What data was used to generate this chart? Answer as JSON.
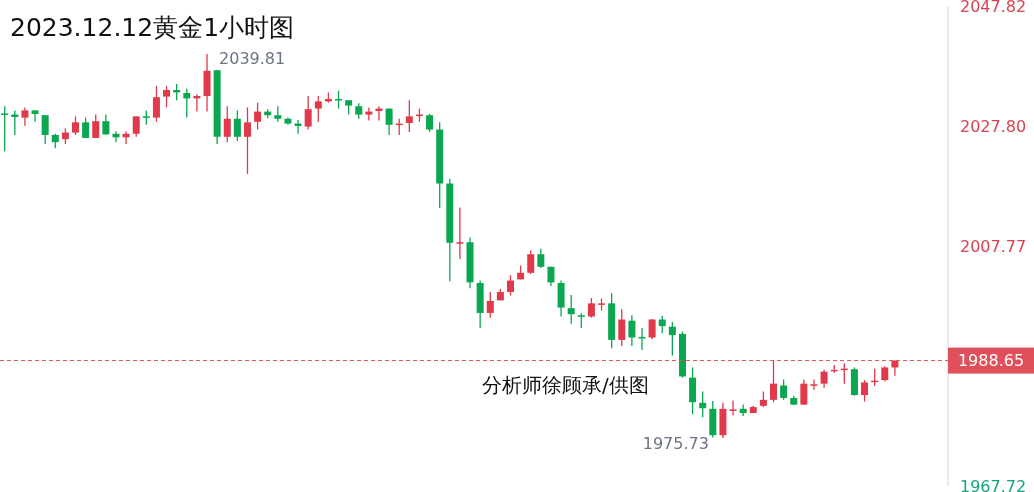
{
  "chart_data": {
    "type": "candlestick",
    "title": "2023.12.12黄金1小时图",
    "annotations": [
      "2039.81",
      "1975.73",
      "分析师徐顾承/供图"
    ],
    "categories": [
      null,
      null,
      null,
      null,
      null,
      null,
      null,
      null,
      null,
      null,
      null,
      null,
      null,
      null,
      null,
      null,
      null,
      null,
      null,
      null,
      null,
      null,
      null,
      null,
      null,
      null,
      null,
      null,
      null,
      null,
      null,
      null,
      null,
      null,
      null,
      null,
      null,
      null,
      null,
      null,
      null,
      null,
      null,
      null,
      null,
      null,
      null,
      null,
      null,
      null,
      null,
      null,
      null,
      null,
      null,
      null,
      null,
      null,
      null,
      null,
      null,
      null,
      null,
      null,
      null,
      null,
      null,
      null,
      null,
      null,
      null,
      null,
      null,
      null,
      null,
      null,
      null,
      null,
      null,
      null,
      null,
      null,
      null,
      null,
      null,
      null,
      null,
      null,
      null
    ],
    "ohlc": [
      [
        2029.9,
        2031.1,
        2023.6,
        2029.8
      ],
      [
        2029.7,
        2030.4,
        2026.3,
        2029.3
      ],
      [
        2029.2,
        2030.9,
        2027.8,
        2030.4
      ],
      [
        2030.4,
        2030.4,
        2028.5,
        2029.8
      ],
      [
        2029.6,
        2029.6,
        2024.8,
        2026.3
      ],
      [
        2026.3,
        2026.5,
        2024.1,
        2025.1
      ],
      [
        2025.6,
        2027.4,
        2024.8,
        2026.7
      ],
      [
        2026.7,
        2029.4,
        2026.3,
        2028.4
      ],
      [
        2028.4,
        2029.2,
        2025.8,
        2025.8
      ],
      [
        2025.8,
        2029.7,
        2025.8,
        2028.6
      ],
      [
        2028.6,
        2029.7,
        2026.3,
        2026.4
      ],
      [
        2026.5,
        2026.9,
        2025.1,
        2025.9
      ],
      [
        2025.9,
        2026.9,
        2024.8,
        2026.5
      ],
      [
        2026.5,
        2029.4,
        2026.0,
        2029.4
      ],
      [
        2029.4,
        2030.4,
        2028.0,
        2029.3
      ],
      [
        2029.2,
        2034.5,
        2028.5,
        2032.6
      ],
      [
        2032.7,
        2034.5,
        2030.9,
        2033.8
      ],
      [
        2033.8,
        2034.8,
        2032.1,
        2033.4
      ],
      [
        2033.3,
        2034.0,
        2029.2,
        2032.4
      ],
      [
        2032.4,
        2033.1,
        2030.2,
        2032.8
      ],
      [
        2032.8,
        2039.81,
        2030.2,
        2037.0
      ],
      [
        2037.1,
        2037.2,
        2024.8,
        2026.0
      ],
      [
        2026.0,
        2031.1,
        2025.1,
        2029.0
      ],
      [
        2029.0,
        2030.4,
        2025.3,
        2026.0
      ],
      [
        2026.0,
        2030.9,
        2019.8,
        2028.4
      ],
      [
        2028.5,
        2031.7,
        2027.2,
        2030.2
      ],
      [
        2030.2,
        2030.6,
        2029.1,
        2029.6
      ],
      [
        2029.6,
        2031.1,
        2028.5,
        2029.0
      ],
      [
        2029.0,
        2029.2,
        2028.0,
        2028.2
      ],
      [
        2028.2,
        2028.8,
        2026.5,
        2027.8
      ],
      [
        2027.7,
        2032.8,
        2027.2,
        2030.6
      ],
      [
        2030.7,
        2032.8,
        2028.5,
        2031.9
      ],
      [
        2031.9,
        2033.4,
        2031.7,
        2032.3
      ],
      [
        2032.3,
        2033.7,
        2030.7,
        2032.2
      ],
      [
        2032.1,
        2032.1,
        2029.7,
        2031.2
      ],
      [
        2031.1,
        2031.6,
        2029.0,
        2029.7
      ],
      [
        2029.7,
        2030.9,
        2028.7,
        2030.2
      ],
      [
        2030.3,
        2031.1,
        2028.7,
        2030.7
      ],
      [
        2030.7,
        2030.7,
        2026.3,
        2028.0
      ],
      [
        2028.1,
        2029.0,
        2026.3,
        2028.2
      ],
      [
        2028.3,
        2032.1,
        2026.8,
        2029.4
      ],
      [
        2029.6,
        2030.7,
        2028.5,
        2029.7
      ],
      [
        2029.6,
        2029.8,
        2026.8,
        2027.2
      ],
      [
        2027.2,
        2028.4,
        2014.1,
        2018.2
      ],
      [
        2018.2,
        2019.0,
        2001.9,
        2008.3
      ],
      [
        2008.3,
        2014.2,
        2005.6,
        2008.4
      ],
      [
        2008.4,
        2009.2,
        2000.7,
        2001.7
      ],
      [
        2001.6,
        2002.0,
        1994.1,
        1996.6
      ],
      [
        1996.6,
        2000.1,
        1995.8,
        1998.6
      ],
      [
        1998.7,
        2000.6,
        1998.7,
        2000.1
      ],
      [
        2000.1,
        2002.9,
        1999.5,
        2002.0
      ],
      [
        2002.2,
        2004.5,
        2002.2,
        2003.3
      ],
      [
        2003.3,
        2007.0,
        2003.1,
        2006.4
      ],
      [
        2006.4,
        2007.3,
        2004.1,
        2004.3
      ],
      [
        2004.3,
        2004.3,
        2001.1,
        2001.7
      ],
      [
        2001.6,
        2002.0,
        1996.0,
        1997.5
      ],
      [
        1997.4,
        1999.6,
        1994.8,
        1996.4
      ],
      [
        1996.2,
        1996.6,
        1994.1,
        1996.1
      ],
      [
        1996.0,
        1999.1,
        1995.8,
        1998.2
      ],
      [
        1998.1,
        1999.0,
        1997.0,
        1998.2
      ],
      [
        1998.2,
        1999.9,
        1990.7,
        1992.1
      ],
      [
        1992.1,
        1997.2,
        1991.1,
        1995.5
      ],
      [
        1995.3,
        1996.2,
        1991.1,
        1992.5
      ],
      [
        1992.6,
        1994.1,
        1990.4,
        1992.5
      ],
      [
        1992.5,
        1995.6,
        1992.2,
        1995.5
      ],
      [
        1995.5,
        1996.1,
        1993.2,
        1994.4
      ],
      [
        1994.3,
        1995.1,
        1989.5,
        1992.9
      ],
      [
        1993.1,
        1993.5,
        1985.8,
        1986.0
      ],
      [
        1985.8,
        1987.5,
        1979.7,
        1981.7
      ],
      [
        1981.6,
        1983.5,
        1979.2,
        1980.7
      ],
      [
        1980.6,
        1981.9,
        1975.8,
        1976.2
      ],
      [
        1976.2,
        1981.6,
        1975.73,
        1980.6
      ],
      [
        1980.4,
        1982.0,
        1979.5,
        1980.5
      ],
      [
        1980.6,
        1981.3,
        1979.4,
        1979.9
      ],
      [
        1979.9,
        1981.1,
        1979.9,
        1980.9
      ],
      [
        1981.1,
        1983.5,
        1980.9,
        1982.1
      ],
      [
        1982.1,
        1988.7,
        1981.7,
        1984.8
      ],
      [
        1984.5,
        1985.5,
        1982.1,
        1982.4
      ],
      [
        1982.4,
        1982.8,
        1981.2,
        1981.3
      ],
      [
        1981.3,
        1985.5,
        1981.3,
        1984.8
      ],
      [
        1984.6,
        1985.5,
        1983.8,
        1984.7
      ],
      [
        1984.8,
        1987.1,
        1984.1,
        1986.8
      ],
      [
        1987.0,
        1987.9,
        1986.6,
        1987.1
      ],
      [
        1987.2,
        1988.2,
        1984.8,
        1987.3
      ],
      [
        1987.2,
        1987.5,
        1982.8,
        1982.9
      ],
      [
        1982.9,
        1985.4,
        1981.8,
        1985.0
      ],
      [
        1985.2,
        1987.3,
        1984.4,
        1985.3
      ],
      [
        1985.4,
        1987.7,
        1985.2,
        1987.5
      ],
      [
        1987.5,
        1988.65,
        1986.1,
        1988.65
      ]
    ],
    "colors": [
      "#0ba652",
      "#0ba652",
      "#e0394a",
      "#0ba652",
      "#0ba652",
      "#0ba652",
      "#e0394a",
      "#e0394a",
      "#0ba652",
      "#e0394a",
      "#0ba652",
      "#0ba652",
      "#e0394a",
      "#e0394a",
      "#0ba652",
      "#e0394a",
      "#e0394a",
      "#0ba652",
      "#0ba652",
      "#e0394a",
      "#e0394a",
      "#0ba652",
      "#e0394a",
      "#0ba652",
      "#e0394a",
      "#e0394a",
      "#0ba652",
      "#0ba652",
      "#0ba652",
      "#0ba652",
      "#e0394a",
      "#e0394a",
      "#e0394a",
      "#0ba652",
      "#0ba652",
      "#0ba652",
      "#e0394a",
      "#e0394a",
      "#0ba652",
      "#e0394a",
      "#e0394a",
      "#e0394a",
      "#0ba652",
      "#0ba652",
      "#0ba652",
      "#e0394a",
      "#0ba652",
      "#0ba652",
      "#e0394a",
      "#e0394a",
      "#e0394a",
      "#e0394a",
      "#e0394a",
      "#0ba652",
      "#0ba652",
      "#0ba652",
      "#0ba652",
      "#0ba652",
      "#e0394a",
      "#e0394a",
      "#0ba652",
      "#e0394a",
      "#0ba652",
      "#0ba652",
      "#e0394a",
      "#0ba652",
      "#0ba652",
      "#0ba652",
      "#0ba652",
      "#0ba652",
      "#0ba652",
      "#e0394a",
      "#e0394a",
      "#0ba652",
      "#e0394a",
      "#e0394a",
      "#e0394a",
      "#0ba652",
      "#0ba652",
      "#e0394a",
      "#e0394a",
      "#e0394a",
      "#e0394a",
      "#e0394a",
      "#0ba652",
      "#e0394a",
      "#e0394a",
      "#e0394a",
      "#e0394a"
    ],
    "ylim": [
      1967.72,
      2047.82
    ],
    "yticks": [
      1967.72,
      2007.77,
      {
        "value": 2027.8,
        "label": "2027.80"
      },
      2047.82
    ],
    "ref_lines": [
      {
        "axis": "y",
        "value": 1988.65,
        "label": "1988.65",
        "color": "#e0505a",
        "line_style": "dashed"
      }
    ],
    "tick_labels": "y"
  }
}
